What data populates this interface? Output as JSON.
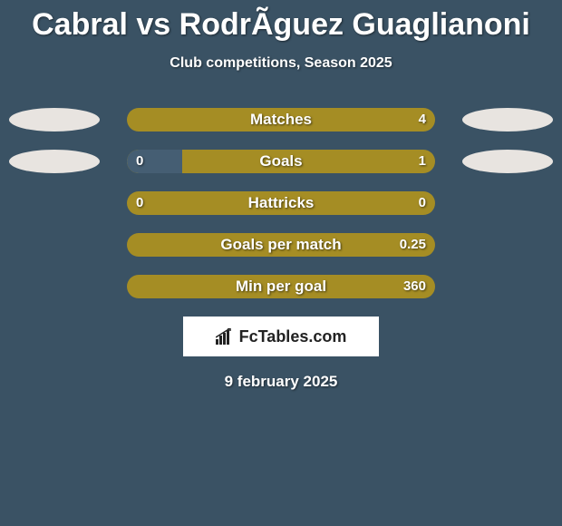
{
  "title": "Cabral vs RodrÃ­guez Guaglianoni",
  "subtitle": "Club competitions, Season 2025",
  "date": "9 february 2025",
  "badge_text": "FcTables.com",
  "colors": {
    "background": "#3a5264",
    "bar_track": "#a58d24",
    "bar_fill": "#455e73",
    "ellipse_left": "#e8e4e0",
    "ellipse_right": "#e8e4e0",
    "text": "#ffffff"
  },
  "rows": [
    {
      "label": "Matches",
      "left_value": "",
      "right_value": "4",
      "left_fill_pct": 0,
      "right_fill_pct": 0,
      "show_left_ellipse": true,
      "show_right_ellipse": true
    },
    {
      "label": "Goals",
      "left_value": "0",
      "right_value": "1",
      "left_fill_pct": 18,
      "right_fill_pct": 0,
      "show_left_ellipse": true,
      "show_right_ellipse": true
    },
    {
      "label": "Hattricks",
      "left_value": "0",
      "right_value": "0",
      "left_fill_pct": 0,
      "right_fill_pct": 0,
      "show_left_ellipse": false,
      "show_right_ellipse": false
    },
    {
      "label": "Goals per match",
      "left_value": "",
      "right_value": "0.25",
      "left_fill_pct": 0,
      "right_fill_pct": 0,
      "show_left_ellipse": false,
      "show_right_ellipse": false
    },
    {
      "label": "Min per goal",
      "left_value": "",
      "right_value": "360",
      "left_fill_pct": 0,
      "right_fill_pct": 0,
      "show_left_ellipse": false,
      "show_right_ellipse": false
    }
  ]
}
